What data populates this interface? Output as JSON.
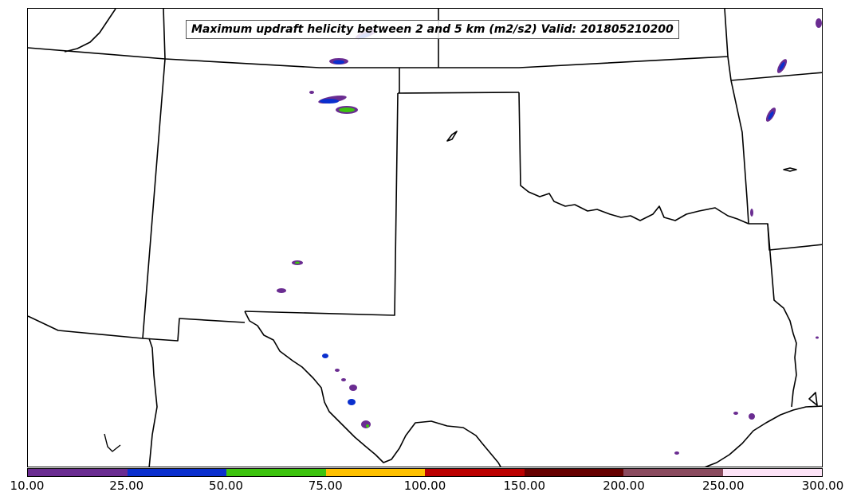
{
  "map": {
    "title": "Maximum updraft helicity between 2 and 5 km (m2/s2) Valid: 201805210200"
  },
  "colorbar": {
    "colors": [
      "#6a2c91",
      "#0a2fce",
      "#3cc30e",
      "#fec000",
      "#bb0000",
      "#660000",
      "#8a4a5e",
      "#fde3f7"
    ],
    "tick_labels": [
      "10.00",
      "25.00",
      "50.00",
      "75.00",
      "100.00",
      "150.00",
      "200.00",
      "250.00",
      "300.00"
    ]
  },
  "palette": {
    "border_color": "#000000",
    "swath_purple": "#6a2c91",
    "swath_blue": "#0a2fce",
    "swath_green": "#3cc30e"
  }
}
